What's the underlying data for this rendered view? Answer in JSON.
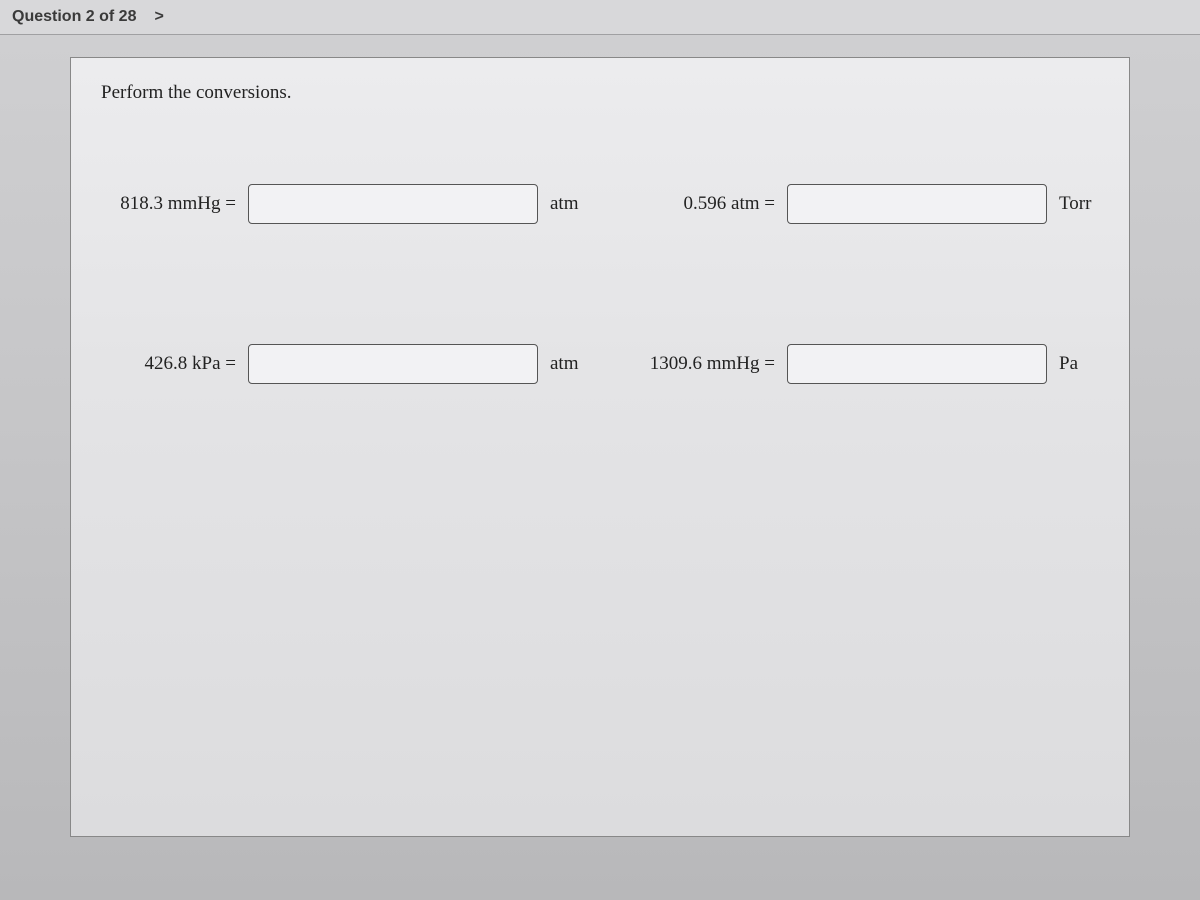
{
  "header": {
    "question_label": "Question 2 of 28",
    "nav_next": ">"
  },
  "content": {
    "instruction": "Perform the conversions.",
    "rows": [
      {
        "left": {
          "prompt": "818.3 mmHg =",
          "value": "",
          "unit": "atm"
        },
        "right": {
          "prompt": "0.596 atm =",
          "value": "",
          "unit": "Torr"
        }
      },
      {
        "left": {
          "prompt": "426.8 kPa =",
          "value": "",
          "unit": "atm"
        },
        "right": {
          "prompt": "1309.6 mmHg =",
          "value": "",
          "unit": "Pa"
        }
      }
    ]
  },
  "style": {
    "background": "#c8c8ca",
    "panel_bg": "#e6e6e8",
    "border_color": "#888888",
    "text_color": "#222222",
    "input_border": "#555555",
    "font_family": "Georgia",
    "instruction_fontsize": 19,
    "label_fontsize": 19
  }
}
